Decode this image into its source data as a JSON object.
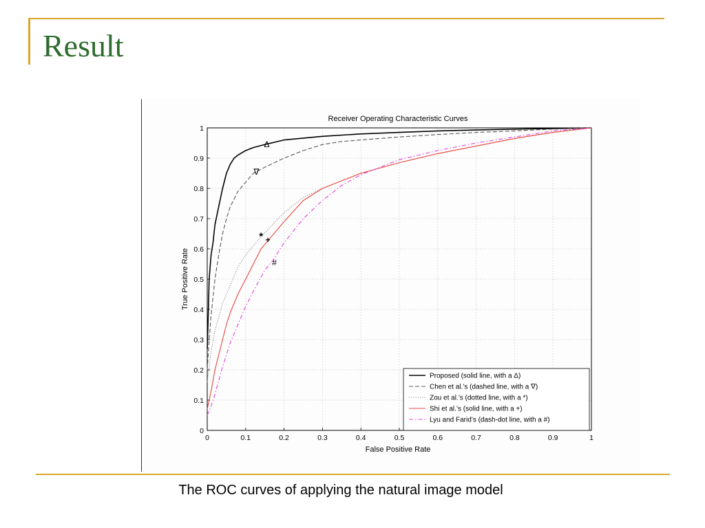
{
  "slide": {
    "title": "Result",
    "caption": "The ROC curves of applying the natural image model"
  },
  "colors": {
    "accent": "#d9a62a",
    "title": "#2e6b2e"
  },
  "chart_data": {
    "type": "line",
    "title": "Receiver Operating Characteristic Curves",
    "xlabel": "False Positive Rate",
    "ylabel": "True Positive Rate",
    "xlim": [
      0,
      1
    ],
    "ylim": [
      0,
      1
    ],
    "xticks": [
      "0",
      "0.1",
      "0.2",
      "0.3",
      "0.4",
      "0.5",
      "0.6",
      "0.7",
      "0.8",
      "0.9",
      "1"
    ],
    "yticks": [
      "0",
      "0.1",
      "0.2",
      "0.3",
      "0.4",
      "0.5",
      "0.6",
      "0.7",
      "0.8",
      "0.9",
      "1"
    ],
    "grid": true,
    "legend_position": "bottom-right",
    "series": [
      {
        "name": "Proposed (solid line, with a Δ)",
        "color": "#000000",
        "style": "solid",
        "marker": "Δ",
        "marker_at": [
          0.155,
          0.945
        ],
        "x": [
          0,
          0.002,
          0.005,
          0.01,
          0.015,
          0.02,
          0.03,
          0.04,
          0.05,
          0.06,
          0.07,
          0.08,
          0.1,
          0.12,
          0.15,
          0.2,
          0.3,
          0.4,
          0.5,
          0.6,
          0.7,
          0.8,
          0.9,
          1.0
        ],
        "y": [
          0.27,
          0.35,
          0.5,
          0.58,
          0.62,
          0.68,
          0.74,
          0.8,
          0.85,
          0.88,
          0.9,
          0.91,
          0.925,
          0.935,
          0.945,
          0.96,
          0.972,
          0.98,
          0.985,
          0.99,
          0.993,
          0.996,
          0.998,
          1.0
        ]
      },
      {
        "name": "Chen et al.’s (dashed line, with a ∇)",
        "color": "#555555",
        "style": "dashed",
        "marker": "∇",
        "marker_at": [
          0.128,
          0.855
        ],
        "x": [
          0,
          0.005,
          0.01,
          0.02,
          0.03,
          0.04,
          0.05,
          0.06,
          0.08,
          0.1,
          0.12,
          0.15,
          0.2,
          0.25,
          0.3,
          0.35,
          0.4,
          0.5,
          0.6,
          0.7,
          0.8,
          0.9,
          1.0
        ],
        "y": [
          0.2,
          0.3,
          0.38,
          0.5,
          0.58,
          0.65,
          0.7,
          0.74,
          0.79,
          0.82,
          0.85,
          0.87,
          0.9,
          0.925,
          0.945,
          0.955,
          0.96,
          0.97,
          0.978,
          0.985,
          0.99,
          0.996,
          1.0
        ]
      },
      {
        "name": "Zou et al.’s (dotted line, with a *)",
        "color": "#8a8a8a",
        "style": "dotted",
        "marker": "*",
        "marker_at": [
          0.14,
          0.64
        ],
        "x": [
          0,
          0.01,
          0.02,
          0.04,
          0.06,
          0.08,
          0.1,
          0.12,
          0.14,
          0.17,
          0.2,
          0.25,
          0.3,
          0.35,
          0.4,
          0.5,
          0.6,
          0.7,
          0.8,
          0.9,
          1.0
        ],
        "y": [
          0.16,
          0.26,
          0.33,
          0.42,
          0.48,
          0.54,
          0.58,
          0.61,
          0.64,
          0.68,
          0.72,
          0.77,
          0.8,
          0.825,
          0.85,
          0.885,
          0.915,
          0.94,
          0.965,
          0.985,
          1.0
        ]
      },
      {
        "name": "Shi et al.’s (solid line, with a +)",
        "color": "#e8453a",
        "style": "solid",
        "marker": "+",
        "marker_at": [
          0.158,
          0.63
        ],
        "x": [
          0,
          0.005,
          0.01,
          0.02,
          0.03,
          0.04,
          0.05,
          0.06,
          0.08,
          0.1,
          0.12,
          0.14,
          0.16,
          0.2,
          0.25,
          0.3,
          0.35,
          0.4,
          0.5,
          0.6,
          0.7,
          0.8,
          0.9,
          1.0
        ],
        "y": [
          0.07,
          0.1,
          0.13,
          0.2,
          0.25,
          0.3,
          0.35,
          0.39,
          0.45,
          0.5,
          0.55,
          0.6,
          0.63,
          0.69,
          0.76,
          0.8,
          0.825,
          0.85,
          0.885,
          0.915,
          0.94,
          0.965,
          0.985,
          1.0
        ]
      },
      {
        "name": "Lyu and Farid’s (dash-dot line, with a #)",
        "color": "#e040e0",
        "style": "dashdot",
        "marker": "#",
        "marker_at": [
          0.175,
          0.555
        ],
        "x": [
          0,
          0.01,
          0.02,
          0.04,
          0.06,
          0.08,
          0.1,
          0.12,
          0.15,
          0.17,
          0.2,
          0.25,
          0.3,
          0.35,
          0.4,
          0.5,
          0.6,
          0.7,
          0.8,
          0.9,
          1.0
        ],
        "y": [
          0.05,
          0.08,
          0.12,
          0.21,
          0.29,
          0.35,
          0.41,
          0.46,
          0.53,
          0.56,
          0.62,
          0.7,
          0.76,
          0.81,
          0.845,
          0.895,
          0.925,
          0.95,
          0.97,
          0.99,
          1.0
        ]
      }
    ]
  }
}
